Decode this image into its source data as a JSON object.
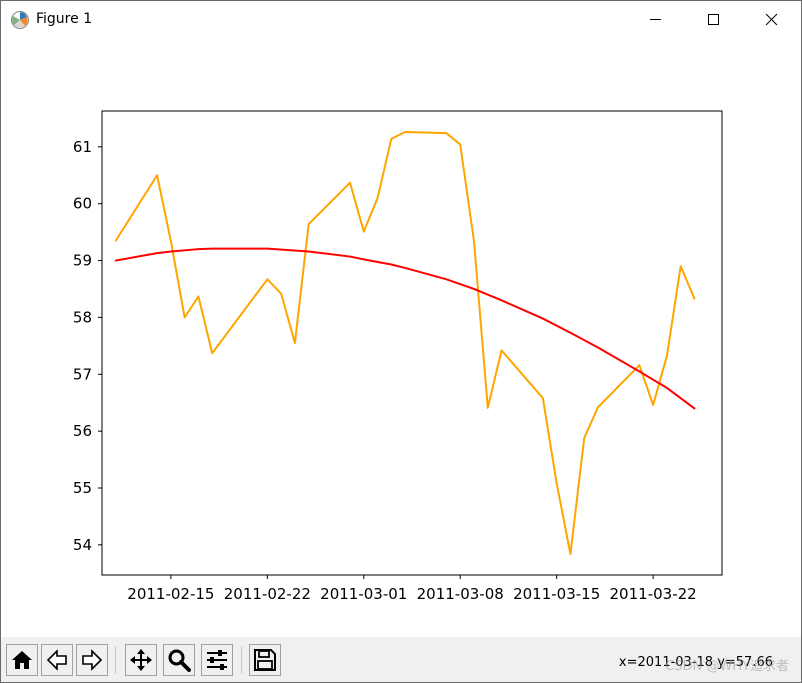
{
  "window": {
    "title": "Figure 1"
  },
  "titlebar_buttons": [
    "minimize-icon",
    "maximize-icon",
    "close-icon"
  ],
  "toolbar": {
    "buttons": [
      "home-icon",
      "back-icon",
      "forward-icon",
      "pan-icon",
      "zoom-icon",
      "configure-subplots-icon",
      "save-icon"
    ],
    "coordinates": "x=2011-03-18  y=57.66",
    "watermark": "CSDN @WHY追求者"
  },
  "colors": {
    "raw_series": "#ffa500",
    "fit_series": "#ff0000"
  },
  "chart_data": {
    "type": "line",
    "x_ticks": [
      "2011-02-15",
      "2011-02-22",
      "2011-03-01",
      "2011-03-08",
      "2011-03-15",
      "2011-03-22"
    ],
    "y_ticks": [
      "54",
      "55",
      "56",
      "57",
      "58",
      "59",
      "60",
      "61"
    ],
    "xlim": [
      "2011-02-10",
      "2011-03-27"
    ],
    "ylim": [
      53.47,
      61.63
    ],
    "grid": false,
    "series": [
      {
        "color": "#ffa500",
        "points": [
          [
            "2011-02-11",
            59.35
          ],
          [
            "2011-02-14",
            60.5
          ],
          [
            "2011-02-15",
            59.34
          ],
          [
            "2011-02-16",
            58.0
          ],
          [
            "2011-02-17",
            58.37
          ],
          [
            "2011-02-18",
            57.37
          ],
          [
            "2011-02-22",
            58.67
          ],
          [
            "2011-02-23",
            58.42
          ],
          [
            "2011-02-24",
            57.55
          ],
          [
            "2011-02-25",
            59.64
          ],
          [
            "2011-02-28",
            60.37
          ],
          [
            "2011-03-01",
            59.51
          ],
          [
            "2011-03-02",
            60.1
          ],
          [
            "2011-03-03",
            61.14
          ],
          [
            "2011-03-04",
            61.26
          ],
          [
            "2011-03-07",
            61.24
          ],
          [
            "2011-03-08",
            61.04
          ],
          [
            "2011-03-09",
            59.34
          ],
          [
            "2011-03-10",
            56.41
          ],
          [
            "2011-03-11",
            57.42
          ],
          [
            "2011-03-14",
            56.58
          ],
          [
            "2011-03-15",
            55.08
          ],
          [
            "2011-03-16",
            53.84
          ],
          [
            "2011-03-17",
            55.88
          ],
          [
            "2011-03-18",
            56.42
          ],
          [
            "2011-03-21",
            57.16
          ],
          [
            "2011-03-22",
            56.46
          ],
          [
            "2011-03-23",
            57.32
          ],
          [
            "2011-03-24",
            58.9
          ],
          [
            "2011-03-25",
            58.33
          ]
        ]
      },
      {
        "color": "#ff0000",
        "points": [
          [
            "2011-02-11",
            59.0
          ],
          [
            "2011-02-14",
            59.13
          ],
          [
            "2011-02-15",
            59.16
          ],
          [
            "2011-02-16",
            59.18
          ],
          [
            "2011-02-17",
            59.2
          ],
          [
            "2011-02-18",
            59.21
          ],
          [
            "2011-02-22",
            59.21
          ],
          [
            "2011-02-25",
            59.16
          ],
          [
            "2011-02-28",
            59.07
          ],
          [
            "2011-03-01",
            59.02
          ],
          [
            "2011-03-03",
            58.93
          ],
          [
            "2011-03-04",
            58.87
          ],
          [
            "2011-03-07",
            58.67
          ],
          [
            "2011-03-09",
            58.5
          ],
          [
            "2011-03-11",
            58.3
          ],
          [
            "2011-03-14",
            57.98
          ],
          [
            "2011-03-16",
            57.73
          ],
          [
            "2011-03-18",
            57.47
          ],
          [
            "2011-03-21",
            57.05
          ],
          [
            "2011-03-23",
            56.76
          ],
          [
            "2011-03-25",
            56.4
          ]
        ]
      }
    ]
  }
}
